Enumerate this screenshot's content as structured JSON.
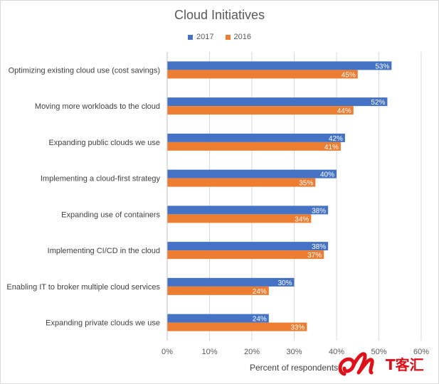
{
  "chart_data": {
    "type": "bar",
    "orientation": "horizontal",
    "title": "Cloud Initiatives",
    "xlabel": "Percent of respondents",
    "ylabel": "",
    "xlim": [
      0,
      60
    ],
    "xticks": [
      "0%",
      "10%",
      "20%",
      "30%",
      "40%",
      "50%",
      "60%"
    ],
    "grid": true,
    "legend_position": "top",
    "categories": [
      "Optimizing existing cloud use (cost savings)",
      "Moving more workloads to the cloud",
      "Expanding public clouds we use",
      "Implementing a cloud-first strategy",
      "Expanding use of containers",
      "Implementing CI/CD in the cloud",
      "Enabling IT to broker multiple cloud services",
      "Expanding private clouds we use"
    ],
    "series": [
      {
        "name": "2017",
        "color": "#4472c4",
        "values": [
          53,
          52,
          42,
          40,
          38,
          38,
          30,
          24
        ],
        "labels": [
          "53%",
          "52%",
          "42%",
          "40%",
          "38%",
          "38%",
          "30%",
          "24%"
        ]
      },
      {
        "name": "2016",
        "color": "#ed7d31",
        "values": [
          45,
          44,
          41,
          35,
          34,
          37,
          24,
          33
        ],
        "labels": [
          "45%",
          "44%",
          "41%",
          "35%",
          "34%",
          "37%",
          "24%",
          "33%"
        ]
      }
    ]
  },
  "watermark": {
    "logo_text": "IT客汇",
    "color": "#e0101a"
  }
}
